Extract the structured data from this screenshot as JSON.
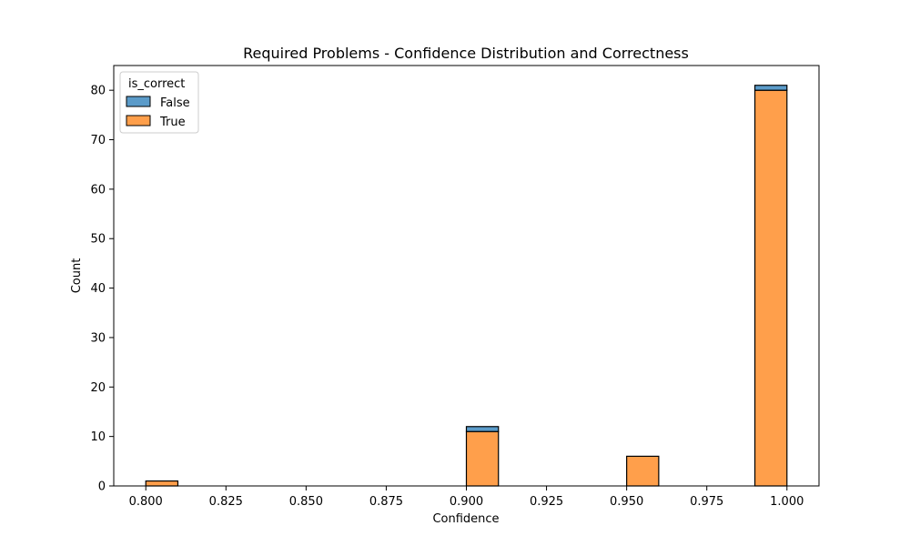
{
  "chart_data": {
    "type": "bar",
    "title": "Required Problems - Confidence Distribution and Correctness",
    "xlabel": "Confidence",
    "ylabel": "Count",
    "xlim": [
      0.79,
      1.01
    ],
    "ylim": [
      0,
      85
    ],
    "x_ticks": [
      "0.800",
      "0.825",
      "0.850",
      "0.875",
      "0.900",
      "0.925",
      "0.950",
      "0.975",
      "1.000"
    ],
    "x_tick_values": [
      0.8,
      0.825,
      0.85,
      0.875,
      0.9,
      0.925,
      0.95,
      0.975,
      1.0
    ],
    "y_ticks": [
      "0",
      "10",
      "20",
      "30",
      "40",
      "50",
      "60",
      "70",
      "80"
    ],
    "y_tick_values": [
      0,
      10,
      20,
      30,
      40,
      50,
      60,
      70,
      80
    ],
    "stacked": true,
    "bin_edges": [
      0.8,
      0.81,
      0.82,
      0.83,
      0.84,
      0.85,
      0.86,
      0.87,
      0.88,
      0.89,
      0.9,
      0.91,
      0.92,
      0.93,
      0.94,
      0.95,
      0.96,
      0.97,
      0.98,
      0.99,
      1.0
    ],
    "series": [
      {
        "name": "True",
        "color": "#ff9f4b",
        "values": [
          1,
          0,
          0,
          0,
          0,
          0,
          0,
          0,
          0,
          0,
          11,
          0,
          0,
          0,
          0,
          6,
          0,
          0,
          0,
          80
        ]
      },
      {
        "name": "False",
        "color": "#5b9bc9",
        "values": [
          0,
          0,
          0,
          0,
          0,
          0,
          0,
          0,
          0,
          0,
          1,
          0,
          0,
          0,
          0,
          0,
          0,
          0,
          0,
          1
        ]
      }
    ],
    "legend": {
      "title": "is_correct",
      "entries": [
        "False",
        "True"
      ],
      "placement": "top-left"
    },
    "grid": false
  }
}
